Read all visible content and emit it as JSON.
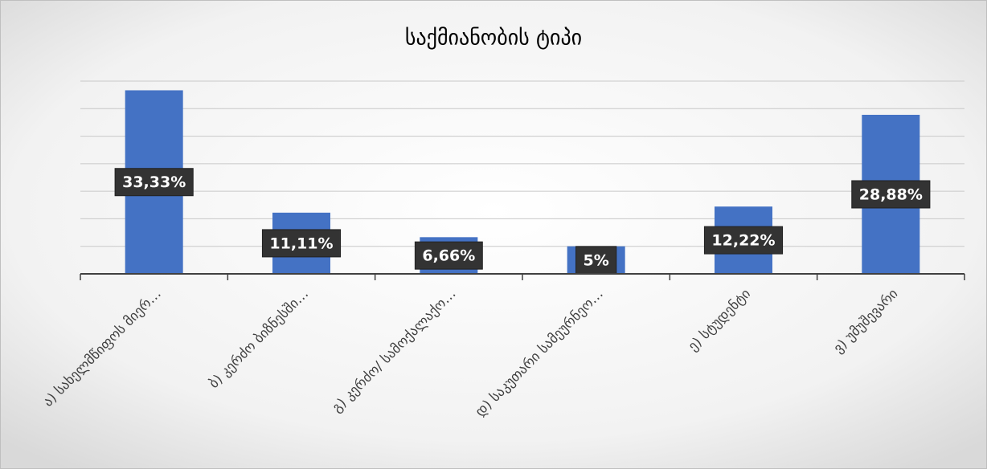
{
  "chart_data": {
    "type": "bar",
    "title": "საქმიანობის ტიპი",
    "categories": [
      "ა) სახელმწიფოს მიერ…",
      "ბ) კერძო ბიზნესში…",
      "გ) კერძო/ სამოქალაქო…",
      "დ) საკუთარი სამეურნეო…",
      "ე) სტუდენტი",
      "ვ) უმუშევარი"
    ],
    "values": [
      33.33,
      11.11,
      6.66,
      5,
      12.22,
      28.88
    ],
    "value_labels": [
      "33,33%",
      "11,11%",
      "6,66%",
      "5%",
      "12,22%",
      "28,88%"
    ],
    "color": "#4472c4",
    "ylim": [
      0,
      35
    ],
    "yticks": [
      0,
      5,
      10,
      15,
      20,
      25,
      30,
      35
    ],
    "grid": true
  }
}
